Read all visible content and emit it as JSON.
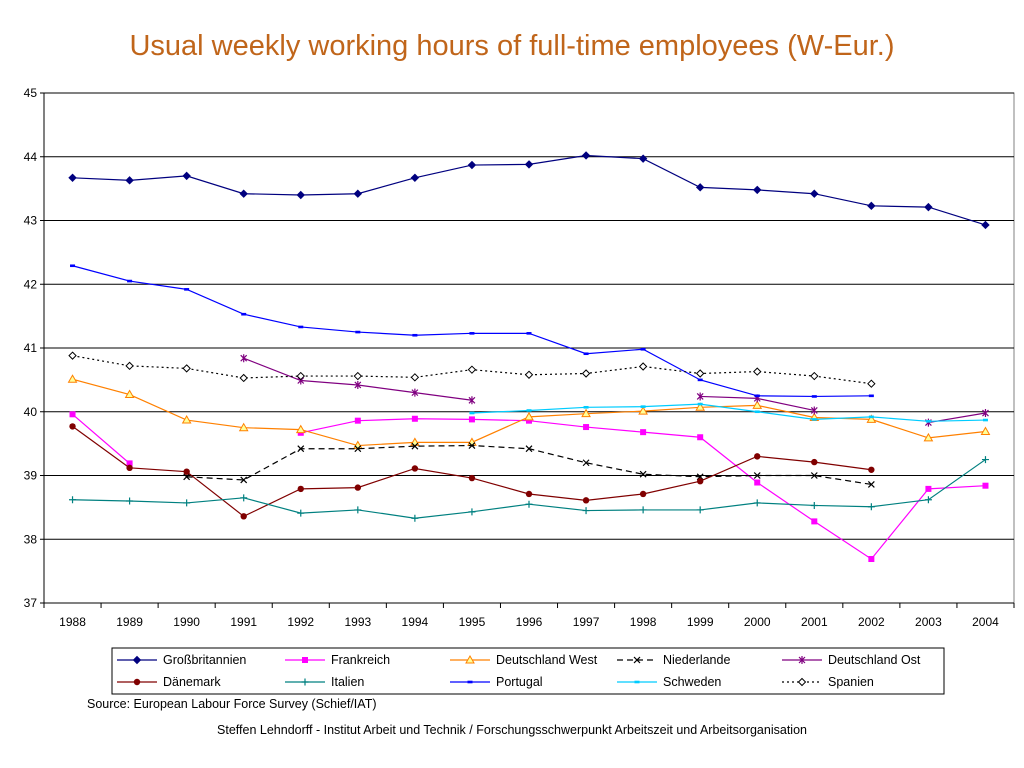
{
  "colors": {
    "title": "#c0651a",
    "grid": "#000000",
    "background": "#ffffff"
  },
  "chart_data": {
    "type": "line",
    "title": "Usual weekly working hours of full-time employees (W-Eur.)",
    "xlabel": "",
    "ylabel": "",
    "categories": [
      "1988",
      "1989",
      "1990",
      "1991",
      "1992",
      "1993",
      "1994",
      "1995",
      "1996",
      "1997",
      "1998",
      "1999",
      "2000",
      "2001",
      "2002",
      "2003",
      "2004"
    ],
    "ylim": [
      37,
      45
    ],
    "yticks": [
      37,
      38,
      39,
      40,
      41,
      42,
      43,
      44,
      45
    ],
    "grid": true,
    "legend_position": "bottom",
    "series": [
      {
        "name": "Großbritannien",
        "color": "#00007f",
        "dash": "solid",
        "marker": "diamond",
        "values": [
          43.67,
          43.63,
          43.7,
          43.42,
          43.4,
          43.42,
          43.67,
          43.87,
          43.88,
          44.02,
          43.97,
          43.52,
          43.48,
          43.42,
          43.23,
          43.21,
          42.93
        ]
      },
      {
        "name": "Frankreich",
        "color": "#ff00ff",
        "dash": "solid",
        "marker": "square",
        "values": [
          39.96,
          39.19,
          null,
          null,
          39.67,
          39.86,
          39.89,
          39.88,
          39.86,
          39.76,
          39.68,
          39.6,
          38.89,
          38.28,
          37.69,
          38.79,
          38.84
        ]
      },
      {
        "name": "Deutschland West",
        "color": "#ff8000",
        "dash": "solid",
        "marker": "triangle",
        "values": [
          40.51,
          40.27,
          39.87,
          39.75,
          39.72,
          39.47,
          39.52,
          39.52,
          39.92,
          39.97,
          40.01,
          40.07,
          40.1,
          39.91,
          39.88,
          39.59,
          39.69
        ]
      },
      {
        "name": "Niederlande",
        "color": "#000000",
        "dash": "dashed",
        "marker": "x",
        "values": [
          null,
          null,
          38.98,
          38.93,
          39.42,
          39.42,
          39.46,
          39.47,
          39.42,
          39.2,
          39.02,
          38.98,
          39.0,
          39.0,
          38.86,
          null,
          null
        ]
      },
      {
        "name": "Deutschland Ost",
        "color": "#800080",
        "dash": "solid",
        "marker": "star",
        "values": [
          null,
          null,
          null,
          40.84,
          40.49,
          40.42,
          40.3,
          40.18,
          null,
          null,
          null,
          40.24,
          40.21,
          40.02,
          null,
          39.83,
          39.98
        ]
      },
      {
        "name": "Dänemark",
        "color": "#800000",
        "dash": "solid",
        "marker": "circle",
        "values": [
          39.77,
          39.12,
          39.06,
          38.36,
          38.79,
          38.81,
          39.11,
          38.96,
          38.71,
          38.61,
          38.71,
          38.91,
          39.3,
          39.21,
          39.09,
          null,
          null
        ]
      },
      {
        "name": "Italien",
        "color": "#008080",
        "dash": "solid",
        "marker": "plus",
        "values": [
          38.62,
          38.6,
          38.57,
          38.65,
          38.41,
          38.46,
          38.33,
          38.43,
          38.55,
          38.45,
          38.46,
          38.46,
          38.57,
          38.53,
          38.51,
          38.62,
          39.25
        ]
      },
      {
        "name": "Portugal",
        "color": "#0000ff",
        "dash": "solid",
        "marker": "dash",
        "values": [
          42.29,
          42.05,
          41.92,
          41.53,
          41.33,
          41.25,
          41.2,
          41.23,
          41.23,
          40.91,
          40.98,
          40.5,
          40.25,
          40.24,
          40.25,
          null,
          null
        ]
      },
      {
        "name": "Schweden",
        "color": "#00ccff",
        "dash": "solid",
        "marker": "dash",
        "values": [
          null,
          null,
          null,
          null,
          null,
          null,
          null,
          39.98,
          40.02,
          40.07,
          40.08,
          40.12,
          40.0,
          39.88,
          39.92,
          39.85,
          39.87
        ]
      },
      {
        "name": "Spanien",
        "color": "#000000",
        "dash": "dotted",
        "marker": "diamond-open",
        "values": [
          40.88,
          40.72,
          40.68,
          40.53,
          40.56,
          40.56,
          40.54,
          40.66,
          40.58,
          40.6,
          40.71,
          40.6,
          40.63,
          40.56,
          40.44,
          null,
          null
        ]
      }
    ]
  },
  "source_text": "Source: European Labour Force Survey (Schief/IAT)",
  "footer_text": "Steffen Lehndorff - Institut Arbeit und Technik / Forschungsschwerpunkt Arbeitszeit und Arbeitsorganisation"
}
